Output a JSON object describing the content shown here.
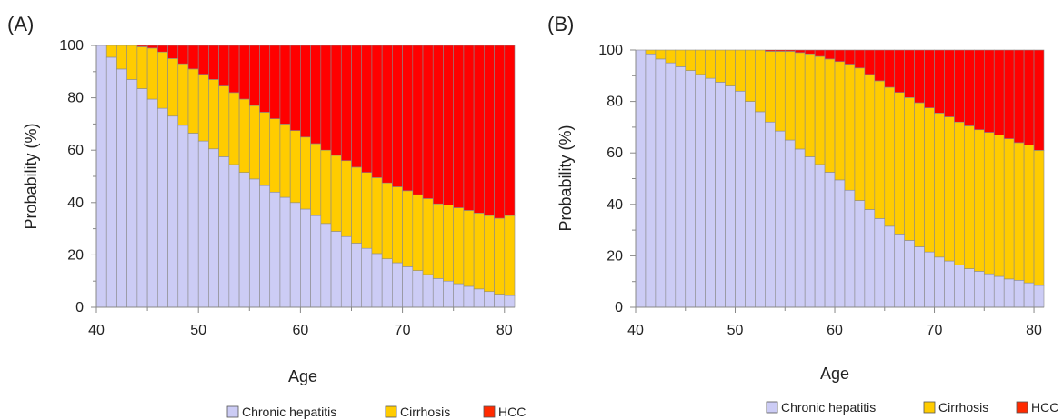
{
  "chart_data": [
    {
      "panel_label": "(A)",
      "type": "bar",
      "stacked": true,
      "orientation": "vertical",
      "xlabel": "Age",
      "ylabel": "Probability (%)",
      "xlim": [
        40,
        81
      ],
      "ylim": [
        0,
        100
      ],
      "x_ticks": [
        40,
        50,
        60,
        70,
        80
      ],
      "y_ticks": [
        0,
        20,
        40,
        60,
        80,
        100
      ],
      "categories": [
        40,
        41,
        42,
        43,
        44,
        45,
        46,
        47,
        48,
        49,
        50,
        51,
        52,
        53,
        54,
        55,
        56,
        57,
        58,
        59,
        60,
        61,
        62,
        63,
        64,
        65,
        66,
        67,
        68,
        69,
        70,
        71,
        72,
        73,
        74,
        75,
        76,
        77,
        78,
        79,
        80
      ],
      "series": [
        {
          "name": "Chronic hepatitis",
          "color": "#ccccf5",
          "values": [
            100,
            95.5,
            91,
            87,
            83.5,
            79.5,
            76,
            73,
            69.5,
            66.5,
            63.5,
            60.5,
            57.5,
            54.5,
            51.5,
            49,
            46.5,
            44,
            42,
            40,
            37.5,
            35,
            32,
            29,
            27,
            24.5,
            22.5,
            20.5,
            18.5,
            17,
            15.5,
            14,
            12.5,
            11,
            10,
            9,
            8,
            7,
            6,
            5,
            4.5
          ]
        },
        {
          "name": "Cirrhosis",
          "color": "#ffcc00",
          "values": [
            0,
            4.5,
            9,
            13,
            16,
            19.5,
            21.5,
            22,
            23.5,
            24.5,
            25.5,
            26.5,
            27,
            27.5,
            28,
            28,
            28,
            28,
            28,
            27.5,
            27.5,
            27.5,
            28,
            29,
            29,
            29,
            29,
            29,
            29,
            29,
            29,
            29,
            29,
            28.5,
            29,
            29,
            29,
            29,
            29,
            29,
            30.5
          ]
        },
        {
          "name": "HCC",
          "color": "#ff0000",
          "values": [
            0,
            0,
            0,
            0,
            0.5,
            1,
            2.5,
            5,
            7,
            9,
            11,
            13,
            15.5,
            18,
            20.5,
            23,
            25.5,
            28,
            30,
            32.5,
            35,
            37.5,
            40,
            42,
            44,
            46.5,
            48.5,
            50.5,
            52.5,
            54,
            55.5,
            57,
            58.5,
            60.5,
            61,
            62,
            63,
            64,
            65,
            66,
            65
          ]
        }
      ],
      "legend": {
        "position": "bottom",
        "entries": [
          "Chronic hepatitis",
          "Cirrhosis",
          "HCC"
        ]
      },
      "grid": false
    },
    {
      "panel_label": "(B)",
      "type": "bar",
      "stacked": true,
      "orientation": "vertical",
      "xlabel": "Age",
      "ylabel": "Probability (%)",
      "xlim": [
        40,
        81
      ],
      "ylim": [
        0,
        100
      ],
      "x_ticks": [
        40,
        50,
        60,
        70,
        80
      ],
      "y_ticks": [
        0,
        20,
        40,
        60,
        80,
        100
      ],
      "categories": [
        40,
        41,
        42,
        43,
        44,
        45,
        46,
        47,
        48,
        49,
        50,
        51,
        52,
        53,
        54,
        55,
        56,
        57,
        58,
        59,
        60,
        61,
        62,
        63,
        64,
        65,
        66,
        67,
        68,
        69,
        70,
        71,
        72,
        73,
        74,
        75,
        76,
        77,
        78,
        79,
        80
      ],
      "series": [
        {
          "name": "Chronic hepatitis",
          "color": "#ccccf5",
          "values": [
            100,
            98.5,
            96.5,
            95,
            93.5,
            92,
            90.5,
            89,
            87.5,
            86,
            84,
            80,
            76,
            72,
            68.5,
            65,
            61.5,
            58.5,
            55.5,
            52.5,
            49.5,
            45.5,
            41.5,
            38,
            34.5,
            31.5,
            28.5,
            26,
            23.5,
            21.5,
            19.5,
            18,
            16.5,
            15,
            14,
            13,
            12,
            11,
            10.5,
            9.5,
            8.5
          ]
        },
        {
          "name": "Cirrhosis",
          "color": "#ffcc00",
          "values": [
            0,
            1.5,
            3.5,
            5,
            6.5,
            8,
            9.5,
            11,
            12.5,
            14,
            16,
            20,
            24,
            27.5,
            31,
            34.5,
            37.5,
            40,
            42,
            44,
            46,
            49,
            51.5,
            52.5,
            53.5,
            54,
            55,
            55.5,
            56,
            56,
            56,
            56,
            55.5,
            55.5,
            55,
            55,
            55,
            54.5,
            53.5,
            53.5,
            52.5
          ]
        },
        {
          "name": "HCC",
          "color": "#ff0000",
          "values": [
            0,
            0,
            0,
            0,
            0,
            0,
            0,
            0,
            0,
            0,
            0,
            0,
            0,
            0.5,
            0.5,
            0.5,
            1,
            1.5,
            2.5,
            3.5,
            4.5,
            5.5,
            7,
            9.5,
            12,
            14.5,
            16.5,
            18.5,
            20.5,
            22.5,
            24.5,
            26,
            28,
            29.5,
            31,
            32,
            33,
            34.5,
            36,
            37,
            39
          ]
        }
      ],
      "legend": {
        "position": "bottom",
        "entries": [
          "Chronic hepatitis",
          "Cirrhosis",
          "HCC"
        ]
      },
      "grid": false
    }
  ],
  "panels": [
    {
      "label": "(A)",
      "xlabel": "Age",
      "ylabel": "Probability (%)",
      "legend": [
        {
          "label": "Chronic hepatitis",
          "color": "#ccccf5"
        },
        {
          "label": "Cirrhosis",
          "color": "#ffcc00"
        },
        {
          "label": "HCC",
          "color": "#ff2a00"
        }
      ]
    },
    {
      "label": "(B)",
      "xlabel": "Age",
      "ylabel": "Probability (%)",
      "legend": [
        {
          "label": "Chronic hepatitis",
          "color": "#ccccf5"
        },
        {
          "label": "Cirrhosis",
          "color": "#ffcc00"
        },
        {
          "label": "HCC",
          "color": "#ff2a00"
        }
      ]
    }
  ]
}
